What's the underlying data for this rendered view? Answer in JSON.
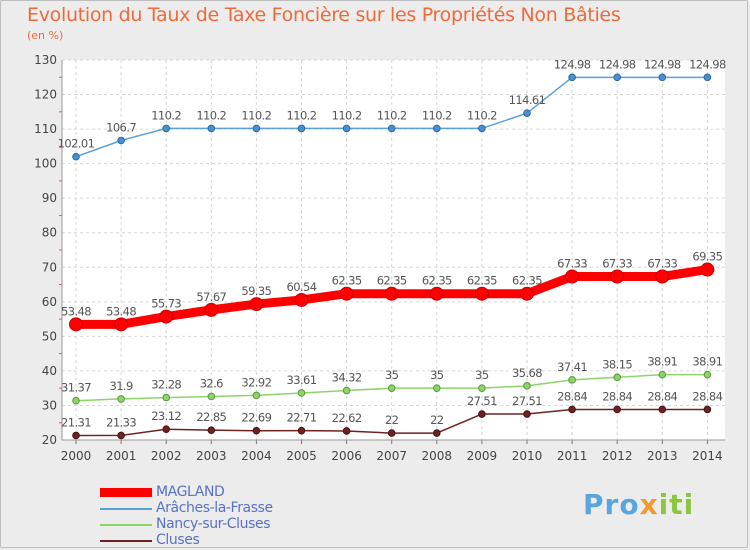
{
  "chart_data": {
    "type": "line",
    "title": "Evolution du Taux de Taxe Foncière sur les Propriétés Non Bâties",
    "subtitle": "(en %)",
    "x": [
      "2000",
      "2001",
      "2002",
      "2003",
      "2004",
      "2005",
      "2006",
      "2007",
      "2008",
      "2009",
      "2010",
      "2011",
      "2012",
      "2013",
      "2014"
    ],
    "ylim": [
      20,
      130
    ],
    "yticks": [
      "20",
      "30",
      "40",
      "50",
      "60",
      "70",
      "80",
      "90",
      "100",
      "110",
      "120",
      "130"
    ],
    "grid": true,
    "legend_position": "bottom-left",
    "series": [
      {
        "name": "MAGLAND",
        "color": "#ff0000",
        "values": [
          53.48,
          53.48,
          55.73,
          57.67,
          59.35,
          60.54,
          62.35,
          62.35,
          62.35,
          62.35,
          62.35,
          67.33,
          67.33,
          67.33,
          69.35
        ],
        "labels": [
          "53.48",
          "53.48",
          "55.73",
          "57.67",
          "59.35",
          "60.54",
          "62.35",
          "62.35",
          "62.35",
          "62.35",
          "62.35",
          "67.33",
          "67.33",
          "67.33",
          "69.35"
        ]
      },
      {
        "name": "Arâches-la-Frasse",
        "color": "#5aa0d8",
        "values": [
          102.01,
          106.7,
          110.2,
          110.2,
          110.2,
          110.2,
          110.2,
          110.2,
          110.2,
          110.2,
          114.61,
          124.98,
          124.98,
          124.98,
          124.98
        ],
        "labels": [
          "102.01",
          "106.7",
          "110.2",
          "110.2",
          "110.2",
          "110.2",
          "110.2",
          "110.2",
          "110.2",
          "110.2",
          "114.61",
          "124.98",
          "124.98",
          "124.98",
          "124.98"
        ]
      },
      {
        "name": "Nancy-sur-Cluses",
        "color": "#8ed36a",
        "values": [
          31.37,
          31.9,
          32.28,
          32.6,
          32.92,
          33.61,
          34.32,
          35,
          35,
          35,
          35.68,
          37.41,
          38.15,
          38.91,
          38.91
        ],
        "labels": [
          "31.37",
          "31.9",
          "32.28",
          "32.6",
          "32.92",
          "33.61",
          "34.32",
          "35",
          "35",
          "35",
          "35.68",
          "37.41",
          "38.15",
          "38.91",
          "38.91"
        ]
      },
      {
        "name": "Cluses",
        "color": "#6e2222",
        "values": [
          21.31,
          21.33,
          23.12,
          22.85,
          22.69,
          22.71,
          22.62,
          22,
          22,
          27.51,
          27.51,
          28.84,
          28.84,
          28.84,
          28.84
        ],
        "labels": [
          "21.31",
          "21.33",
          "23.12",
          "22.85",
          "22.69",
          "22.71",
          "22.62",
          "22",
          "22",
          "27.51",
          "27.51",
          "28.84",
          "28.84",
          "28.84",
          "28.84"
        ]
      }
    ]
  },
  "legend_items": [
    "MAGLAND",
    "Arâches-la-Frasse",
    "Nancy-sur-Cluses",
    "Cluses"
  ],
  "logo": {
    "part1": "Pro",
    "part2": "x",
    "part3": "iti"
  }
}
